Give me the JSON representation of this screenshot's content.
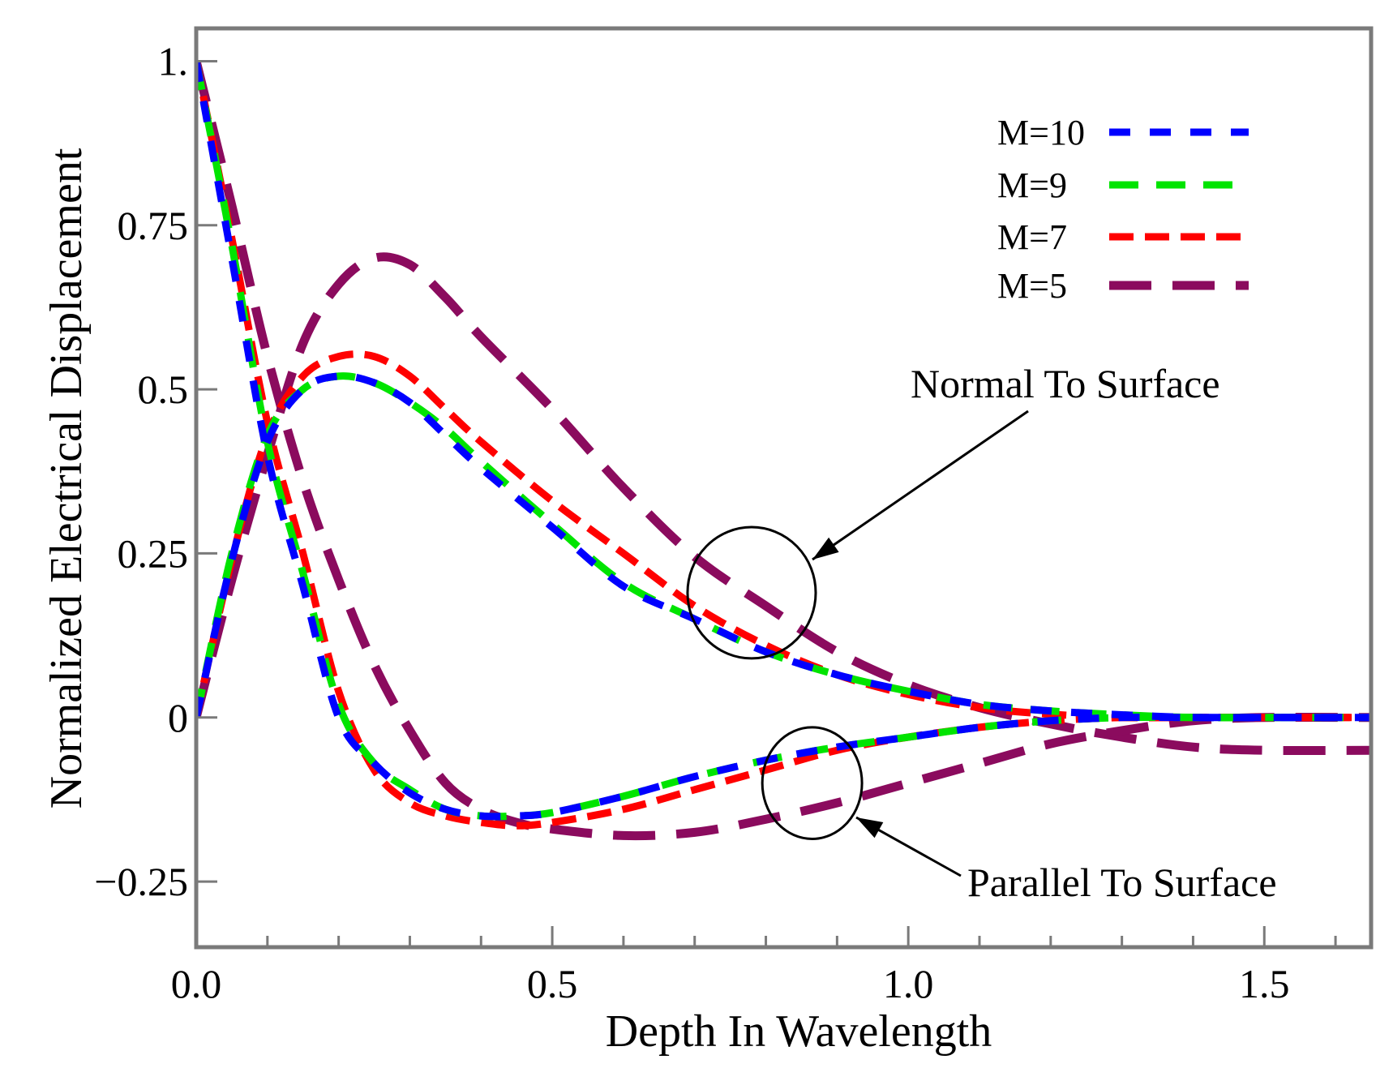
{
  "chart_data": {
    "type": "line",
    "title": "",
    "xlabel": "Depth In Wavelength",
    "ylabel": "Normalized Electrical Displacement",
    "xlim": [
      0,
      1.65
    ],
    "ylim": [
      -0.35,
      1.05
    ],
    "grid": false,
    "legend_position": "top-right",
    "x_ticks": [
      {
        "value": 0.0,
        "label": "0.0"
      },
      {
        "value": 0.5,
        "label": "0.5"
      },
      {
        "value": 1.0,
        "label": "1.0"
      },
      {
        "value": 1.5,
        "label": "1.5"
      }
    ],
    "x_minor_ticks": [
      0.1,
      0.2,
      0.3,
      0.4,
      0.6,
      0.7,
      0.8,
      0.9,
      1.1,
      1.2,
      1.3,
      1.4,
      1.6
    ],
    "y_ticks": [
      {
        "value": 1.0,
        "label": "1."
      },
      {
        "value": 0.75,
        "label": "0.75"
      },
      {
        "value": 0.5,
        "label": "0.5"
      },
      {
        "value": 0.25,
        "label": "0.25"
      },
      {
        "value": 0.0,
        "label": "0"
      },
      {
        "value": -0.25,
        "label": "−0.25"
      }
    ],
    "series": [
      {
        "name": "M=10",
        "color": "#0000ff",
        "dash": "short-long",
        "normal": {
          "x": [
            0.0,
            0.05,
            0.1,
            0.15,
            0.2,
            0.25,
            0.3,
            0.35,
            0.4,
            0.5,
            0.6,
            0.7,
            0.8,
            0.9,
            1.0,
            1.1,
            1.2,
            1.3,
            1.4,
            1.5,
            1.65
          ],
          "y": [
            0.0,
            0.24,
            0.42,
            0.5,
            0.52,
            0.51,
            0.48,
            0.43,
            0.38,
            0.29,
            0.2,
            0.15,
            0.1,
            0.065,
            0.04,
            0.02,
            0.01,
            0.004,
            0.0,
            0.0,
            0.0
          ]
        },
        "parallel": {
          "x": [
            0.0,
            0.05,
            0.1,
            0.15,
            0.2,
            0.25,
            0.3,
            0.35,
            0.4,
            0.45,
            0.5,
            0.6,
            0.7,
            0.8,
            0.9,
            1.0,
            1.1,
            1.2,
            1.3,
            1.4,
            1.5,
            1.65
          ],
          "y": [
            1.0,
            0.7,
            0.4,
            0.2,
            0.0,
            -0.07,
            -0.115,
            -0.14,
            -0.15,
            -0.15,
            -0.145,
            -0.12,
            -0.09,
            -0.065,
            -0.045,
            -0.03,
            -0.015,
            -0.005,
            0.0,
            0.0,
            0.0,
            0.0
          ]
        }
      },
      {
        "name": "M=9",
        "color": "#00e400",
        "dash": "dash",
        "normal": {
          "x": [
            0.0,
            0.05,
            0.1,
            0.15,
            0.2,
            0.25,
            0.3,
            0.35,
            0.4,
            0.5,
            0.6,
            0.7,
            0.8,
            0.9,
            1.0,
            1.1,
            1.2,
            1.3,
            1.4,
            1.5,
            1.65
          ],
          "y": [
            0.0,
            0.25,
            0.43,
            0.5,
            0.52,
            0.51,
            0.48,
            0.44,
            0.39,
            0.295,
            0.205,
            0.15,
            0.1,
            0.065,
            0.04,
            0.02,
            0.01,
            0.004,
            0.0,
            0.0,
            0.0
          ]
        },
        "parallel": {
          "x": [
            0.0,
            0.05,
            0.1,
            0.15,
            0.2,
            0.25,
            0.3,
            0.35,
            0.4,
            0.45,
            0.5,
            0.6,
            0.7,
            0.8,
            0.9,
            1.0,
            1.1,
            1.2,
            1.3,
            1.4,
            1.5,
            1.65
          ],
          "y": [
            1.0,
            0.72,
            0.42,
            0.22,
            0.02,
            -0.07,
            -0.11,
            -0.14,
            -0.15,
            -0.15,
            -0.145,
            -0.12,
            -0.09,
            -0.065,
            -0.045,
            -0.03,
            -0.015,
            -0.005,
            0.0,
            0.0,
            0.0,
            0.0
          ]
        }
      },
      {
        "name": "M=7",
        "color": "#ff0000",
        "dash": "dense",
        "normal": {
          "x": [
            0.0,
            0.05,
            0.1,
            0.15,
            0.2,
            0.25,
            0.3,
            0.35,
            0.4,
            0.5,
            0.6,
            0.7,
            0.8,
            0.9,
            1.0,
            1.1,
            1.2,
            1.3,
            1.4,
            1.5,
            1.65
          ],
          "y": [
            0.0,
            0.24,
            0.43,
            0.52,
            0.55,
            0.55,
            0.52,
            0.47,
            0.42,
            0.33,
            0.25,
            0.17,
            0.11,
            0.065,
            0.035,
            0.015,
            0.005,
            0.0,
            0.0,
            0.0,
            0.0
          ]
        },
        "parallel": {
          "x": [
            0.0,
            0.05,
            0.1,
            0.15,
            0.2,
            0.25,
            0.3,
            0.35,
            0.4,
            0.45,
            0.5,
            0.6,
            0.7,
            0.8,
            0.9,
            1.0,
            1.1,
            1.2,
            1.3,
            1.4,
            1.5,
            1.65
          ],
          "y": [
            1.0,
            0.73,
            0.45,
            0.25,
            0.04,
            -0.08,
            -0.13,
            -0.15,
            -0.16,
            -0.165,
            -0.16,
            -0.14,
            -0.11,
            -0.08,
            -0.05,
            -0.03,
            -0.015,
            -0.005,
            0.0,
            0.0,
            0.0,
            0.0
          ]
        }
      },
      {
        "name": "M=5",
        "color": "#8b0b5e",
        "dash": "long",
        "normal": {
          "x": [
            0.0,
            0.05,
            0.1,
            0.15,
            0.2,
            0.25,
            0.3,
            0.35,
            0.4,
            0.5,
            0.6,
            0.7,
            0.8,
            0.9,
            1.0,
            1.1,
            1.2,
            1.3,
            1.4,
            1.5,
            1.65
          ],
          "y": [
            0.0,
            0.21,
            0.4,
            0.57,
            0.66,
            0.7,
            0.69,
            0.64,
            0.58,
            0.47,
            0.35,
            0.245,
            0.17,
            0.1,
            0.05,
            0.015,
            -0.01,
            -0.03,
            -0.045,
            -0.05,
            -0.05
          ]
        },
        "parallel": {
          "x": [
            0.0,
            0.05,
            0.1,
            0.15,
            0.2,
            0.25,
            0.3,
            0.35,
            0.4,
            0.45,
            0.5,
            0.6,
            0.7,
            0.8,
            0.9,
            1.0,
            1.1,
            1.2,
            1.3,
            1.4,
            1.5,
            1.65
          ],
          "y": [
            1.0,
            0.78,
            0.55,
            0.36,
            0.21,
            0.08,
            -0.02,
            -0.1,
            -0.14,
            -0.16,
            -0.17,
            -0.18,
            -0.175,
            -0.155,
            -0.13,
            -0.1,
            -0.07,
            -0.04,
            -0.02,
            -0.005,
            0.0,
            0.0
          ]
        }
      }
    ],
    "annotations": [
      {
        "text": "Normal To Surface",
        "circle_center": [
          0.78,
          0.19
        ],
        "circle_radius_x": 0.09,
        "circle_radius_y": 0.1
      },
      {
        "text": "Parallel To Surface",
        "circle_center": [
          0.865,
          -0.1
        ],
        "circle_radius_x": 0.07,
        "circle_radius_y": 0.085
      }
    ]
  }
}
